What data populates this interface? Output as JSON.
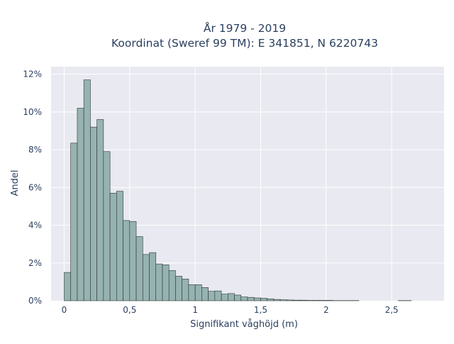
{
  "chart_data": {
    "type": "bar",
    "title_line1": "År 1979 - 2019",
    "title_line2": "Koordinat (Sweref 99 TM): E 341851, N 6220743",
    "xlabel": "Signifikant våghöjd (m)",
    "ylabel": "Andel",
    "bin_width": 0.05,
    "x_start": 0.0,
    "xlim": [
      -0.1,
      2.9
    ],
    "ylim": [
      0,
      12.4
    ],
    "x_ticks": [
      {
        "value": 0,
        "label": "0"
      },
      {
        "value": 0.5,
        "label": "0,5"
      },
      {
        "value": 1,
        "label": "1"
      },
      {
        "value": 1.5,
        "label": "1,5"
      },
      {
        "value": 2,
        "label": "2"
      },
      {
        "value": 2.5,
        "label": "2,5"
      }
    ],
    "y_ticks": [
      {
        "value": 0,
        "label": "0%"
      },
      {
        "value": 2,
        "label": "2%"
      },
      {
        "value": 4,
        "label": "4%"
      },
      {
        "value": 6,
        "label": "6%"
      },
      {
        "value": 8,
        "label": "8%"
      },
      {
        "value": 10,
        "label": "10%"
      },
      {
        "value": 12,
        "label": "12%"
      }
    ],
    "values": [
      1.5,
      8.35,
      10.2,
      11.7,
      9.2,
      9.6,
      7.9,
      5.7,
      5.8,
      4.25,
      4.2,
      3.4,
      2.45,
      2.55,
      1.95,
      1.9,
      1.6,
      1.3,
      1.15,
      0.85,
      0.85,
      0.7,
      0.5,
      0.52,
      0.35,
      0.38,
      0.3,
      0.2,
      0.18,
      0.15,
      0.13,
      0.1,
      0.07,
      0.05,
      0.04,
      0.03,
      0.03,
      0.02,
      0.02,
      0.02,
      0.02,
      0.01,
      0.01,
      0.01,
      0.01,
      0.0,
      0.0,
      0.0,
      0.0,
      0.0,
      0.0,
      0.01,
      0.01,
      0.0,
      0.0,
      0.0
    ],
    "colors": {
      "bar_fill": "#96b3b1",
      "bar_stroke": "#2b3433",
      "plot_bg": "#e9e9f1",
      "grid": "#ffffff",
      "text": "#2a3f5f"
    }
  }
}
